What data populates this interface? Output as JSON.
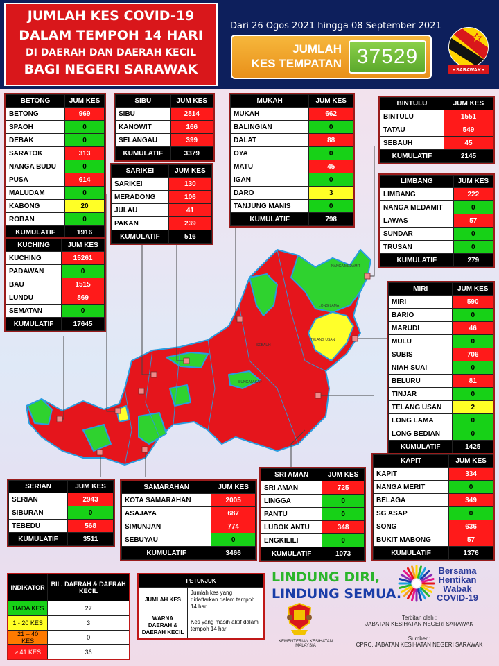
{
  "header": {
    "title_lines": [
      "JUMLAH KES COVID-19",
      "DALAM TEMPOH 14 HARI",
      "DI DAERAH DAN DAERAH KECIL",
      "BAGI NEGERI SARAWAK"
    ],
    "date_range": "Dari 26 Ogos 2021 hingga 08 September 2021",
    "total_label_1": "JUMLAH",
    "total_label_2": "KES TEMPATAN",
    "total_value": "37529",
    "flag_label": "SARAWAK"
  },
  "colors": {
    "red": "#ff1a1a",
    "green": "#17d117",
    "yellow": "#ffff26",
    "orange": "#ff7a00",
    "navy": "#0d1f5c"
  },
  "col_header": "JUM KES",
  "total_label": "KUMULATIF",
  "divisions": [
    {
      "id": "betong",
      "name": "BETONG",
      "rows": [
        {
          "name": "BETONG",
          "value": "969",
          "color": "red"
        },
        {
          "name": "SPAOH",
          "value": "0",
          "color": "green"
        },
        {
          "name": "DEBAK",
          "value": "0",
          "color": "green"
        },
        {
          "name": "SARATOK",
          "value": "313",
          "color": "red"
        },
        {
          "name": "NANGA BUDU",
          "value": "0",
          "color": "green"
        },
        {
          "name": "PUSA",
          "value": "614",
          "color": "red"
        },
        {
          "name": "MALUDAM",
          "value": "0",
          "color": "green"
        },
        {
          "name": "KABONG",
          "value": "20",
          "color": "yellow"
        },
        {
          "name": "ROBAN",
          "value": "0",
          "color": "green"
        }
      ],
      "total": "1916"
    },
    {
      "id": "sibu",
      "name": "SIBU",
      "rows": [
        {
          "name": "SIBU",
          "value": "2814",
          "color": "red"
        },
        {
          "name": "KANOWIT",
          "value": "166",
          "color": "red"
        },
        {
          "name": "SELANGAU",
          "value": "399",
          "color": "red"
        }
      ],
      "total": "3379"
    },
    {
      "id": "mukah",
      "name": "MUKAH",
      "rows": [
        {
          "name": "MUKAH",
          "value": "662",
          "color": "red"
        },
        {
          "name": "BALINGIAN",
          "value": "0",
          "color": "green"
        },
        {
          "name": "DALAT",
          "value": "88",
          "color": "red"
        },
        {
          "name": "OYA",
          "value": "0",
          "color": "green"
        },
        {
          "name": "MATU",
          "value": "45",
          "color": "red"
        },
        {
          "name": "IGAN",
          "value": "0",
          "color": "green"
        },
        {
          "name": "DARO",
          "value": "3",
          "color": "yellow"
        },
        {
          "name": "TANJUNG MANIS",
          "value": "0",
          "color": "green"
        }
      ],
      "total": "798"
    },
    {
      "id": "bintulu",
      "name": "BINTULU",
      "rows": [
        {
          "name": "BINTULU",
          "value": "1551",
          "color": "red"
        },
        {
          "name": "TATAU",
          "value": "549",
          "color": "red"
        },
        {
          "name": "SEBAUH",
          "value": "45",
          "color": "red"
        }
      ],
      "total": "2145"
    },
    {
      "id": "sarikei",
      "name": "SARIKEI",
      "rows": [
        {
          "name": "SARIKEI",
          "value": "130",
          "color": "red"
        },
        {
          "name": "MERADONG",
          "value": "106",
          "color": "red"
        },
        {
          "name": "JULAU",
          "value": "41",
          "color": "red"
        },
        {
          "name": "PAKAN",
          "value": "239",
          "color": "red"
        }
      ],
      "total": "516"
    },
    {
      "id": "limbang",
      "name": "LIMBANG",
      "rows": [
        {
          "name": "LIMBANG",
          "value": "222",
          "color": "red"
        },
        {
          "name": "NANGA MEDAMIT",
          "value": "0",
          "color": "green"
        },
        {
          "name": "LAWAS",
          "value": "57",
          "color": "red"
        },
        {
          "name": "SUNDAR",
          "value": "0",
          "color": "green"
        },
        {
          "name": "TRUSAN",
          "value": "0",
          "color": "green"
        }
      ],
      "total": "279"
    },
    {
      "id": "kuching",
      "name": "KUCHING",
      "rows": [
        {
          "name": "KUCHING",
          "value": "15261",
          "color": "red"
        },
        {
          "name": "PADAWAN",
          "value": "0",
          "color": "green"
        },
        {
          "name": "BAU",
          "value": "1515",
          "color": "red"
        },
        {
          "name": "LUNDU",
          "value": "869",
          "color": "red"
        },
        {
          "name": "SEMATAN",
          "value": "0",
          "color": "green"
        }
      ],
      "total": "17645"
    },
    {
      "id": "miri",
      "name": "MIRI",
      "rows": [
        {
          "name": "MIRI",
          "value": "590",
          "color": "red"
        },
        {
          "name": "BARIO",
          "value": "0",
          "color": "green"
        },
        {
          "name": "MARUDI",
          "value": "46",
          "color": "red"
        },
        {
          "name": "MULU",
          "value": "0",
          "color": "green"
        },
        {
          "name": "SUBIS",
          "value": "706",
          "color": "red"
        },
        {
          "name": "NIAH SUAI",
          "value": "0",
          "color": "green"
        },
        {
          "name": "BELURU",
          "value": "81",
          "color": "red"
        },
        {
          "name": "TINJAR",
          "value": "0",
          "color": "green"
        },
        {
          "name": "TELANG USAN",
          "value": "2",
          "color": "yellow"
        },
        {
          "name": "LONG LAMA",
          "value": "0",
          "color": "green"
        },
        {
          "name": "LONG BEDIAN",
          "value": "0",
          "color": "green"
        }
      ],
      "total": "1425"
    },
    {
      "id": "kapit",
      "name": "KAPIT",
      "rows": [
        {
          "name": "KAPIT",
          "value": "334",
          "color": "red"
        },
        {
          "name": "NANGA MERIT",
          "value": "0",
          "color": "green"
        },
        {
          "name": "BELAGA",
          "value": "349",
          "color": "red"
        },
        {
          "name": "SG ASAP",
          "value": "0",
          "color": "green"
        },
        {
          "name": "SONG",
          "value": "636",
          "color": "red"
        },
        {
          "name": "BUKIT MABONG",
          "value": "57",
          "color": "red"
        }
      ],
      "total": "1376"
    },
    {
      "id": "sriaman",
      "name": "SRI AMAN",
      "rows": [
        {
          "name": "SRI AMAN",
          "value": "725",
          "color": "red"
        },
        {
          "name": "LINGGA",
          "value": "0",
          "color": "green"
        },
        {
          "name": "PANTU",
          "value": "0",
          "color": "green"
        },
        {
          "name": "LUBOK ANTU",
          "value": "348",
          "color": "red"
        },
        {
          "name": "ENGKILILI",
          "value": "0",
          "color": "green"
        }
      ],
      "total": "1073"
    },
    {
      "id": "samarahan",
      "name": "SAMARAHAN",
      "rows": [
        {
          "name": "KOTA SAMARAHAN",
          "value": "2005",
          "color": "red"
        },
        {
          "name": "ASAJAYA",
          "value": "687",
          "color": "red"
        },
        {
          "name": "SIMUNJAN",
          "value": "774",
          "color": "red"
        },
        {
          "name": "SEBUYAU",
          "value": "0",
          "color": "green"
        }
      ],
      "total": "3466"
    },
    {
      "id": "serian",
      "name": "SERIAN",
      "rows": [
        {
          "name": "SERIAN",
          "value": "2943",
          "color": "red"
        },
        {
          "name": "SIBURAN",
          "value": "0",
          "color": "green"
        },
        {
          "name": "TEBEDU",
          "value": "568",
          "color": "red"
        }
      ],
      "total": "3511"
    }
  ],
  "legend": {
    "header_1": "INDIKATOR",
    "header_2": "BIL. DAERAH & DAERAH KECIL",
    "rows": [
      {
        "label": "TIADA KES",
        "count": "27",
        "color": "green"
      },
      {
        "label": "1 - 20 KES",
        "count": "3",
        "color": "yellow"
      },
      {
        "label": "21 – 40 KES",
        "count": "0",
        "color": "orange"
      },
      {
        "label": "≥ 41 KES",
        "count": "36",
        "color": "red"
      }
    ]
  },
  "petunjuk": {
    "title": "PETUNJUK",
    "rows": [
      {
        "term": "JUMLAH KES",
        "desc": "Jumlah kes yang didaftarkan dalam tempoh 14 hari"
      },
      {
        "term": "WARNA DAERAH & DAERAH KECIL",
        "desc": "Kes yang masih aktif dalam tempoh 14 hari"
      }
    ]
  },
  "footer": {
    "slogan_1": "LINDUNG DIRI,",
    "slogan_2": "LINDUNG SEMUA.",
    "campaign_1": "Bersama",
    "campaign_2": "Hentikan",
    "campaign_3": "Wabak",
    "campaign_4": "COVID-19",
    "ministry_1": "KEMENTERIAN KESIHATAN",
    "ministry_2": "MALAYSIA",
    "publisher_label": "Terbitan oleh :",
    "publisher": "JABATAN KESIHATAN NEGERI SARAWAK",
    "source_label": "Sumber :",
    "source": "CPRC, JABATAN KESIHATAN NEGERI SARAWAK"
  },
  "map_labels": [
    {
      "text": "NANGA MEDAMIT",
      "x": 478,
      "y": 381
    },
    {
      "text": "LONG LAMA",
      "x": 460,
      "y": 438
    },
    {
      "text": "TELANG USAN",
      "x": 448,
      "y": 487
    },
    {
      "text": "SEBAUH",
      "x": 370,
      "y": 495
    },
    {
      "text": "SUNGAI ASAP",
      "x": 344,
      "y": 548
    }
  ]
}
